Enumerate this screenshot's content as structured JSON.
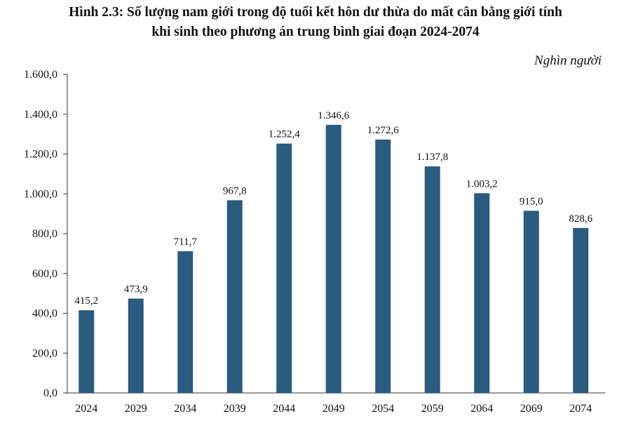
{
  "chart_data": {
    "type": "bar",
    "title_line1": "Hình 2.3: Số lượng nam giới trong độ tuổi kết hôn dư thừa do mất cân bằng giới tính",
    "title_line2": "khi sinh theo phương án trung bình giai đoạn 2024-2074",
    "unit": "Nghìn người",
    "categories": [
      "2024",
      "2029",
      "2034",
      "2039",
      "2044",
      "2049",
      "2054",
      "2059",
      "2064",
      "2069",
      "2074"
    ],
    "values": [
      415.2,
      473.9,
      711.7,
      967.8,
      1252.4,
      1346.6,
      1272.6,
      1137.8,
      1003.2,
      915.0,
      828.6
    ],
    "value_labels": [
      "415,2",
      "473,9",
      "711,7",
      "967,8",
      "1.252,4",
      "1.346,6",
      "1.272,6",
      "1.137,8",
      "1.003,2",
      "915,0",
      "828,6"
    ],
    "yticks": [
      0,
      200,
      400,
      600,
      800,
      1000,
      1200,
      1400,
      1600
    ],
    "ytick_labels": [
      "0,0",
      "200,0",
      "400,0",
      "600,0",
      "800,0",
      "1.000,0",
      "1.200,0",
      "1.400,0",
      "1.600,0"
    ],
    "ylim": [
      0,
      1600
    ],
    "xlabel": "",
    "ylabel": "",
    "bar_color": "#2a5b80",
    "grid": false
  }
}
